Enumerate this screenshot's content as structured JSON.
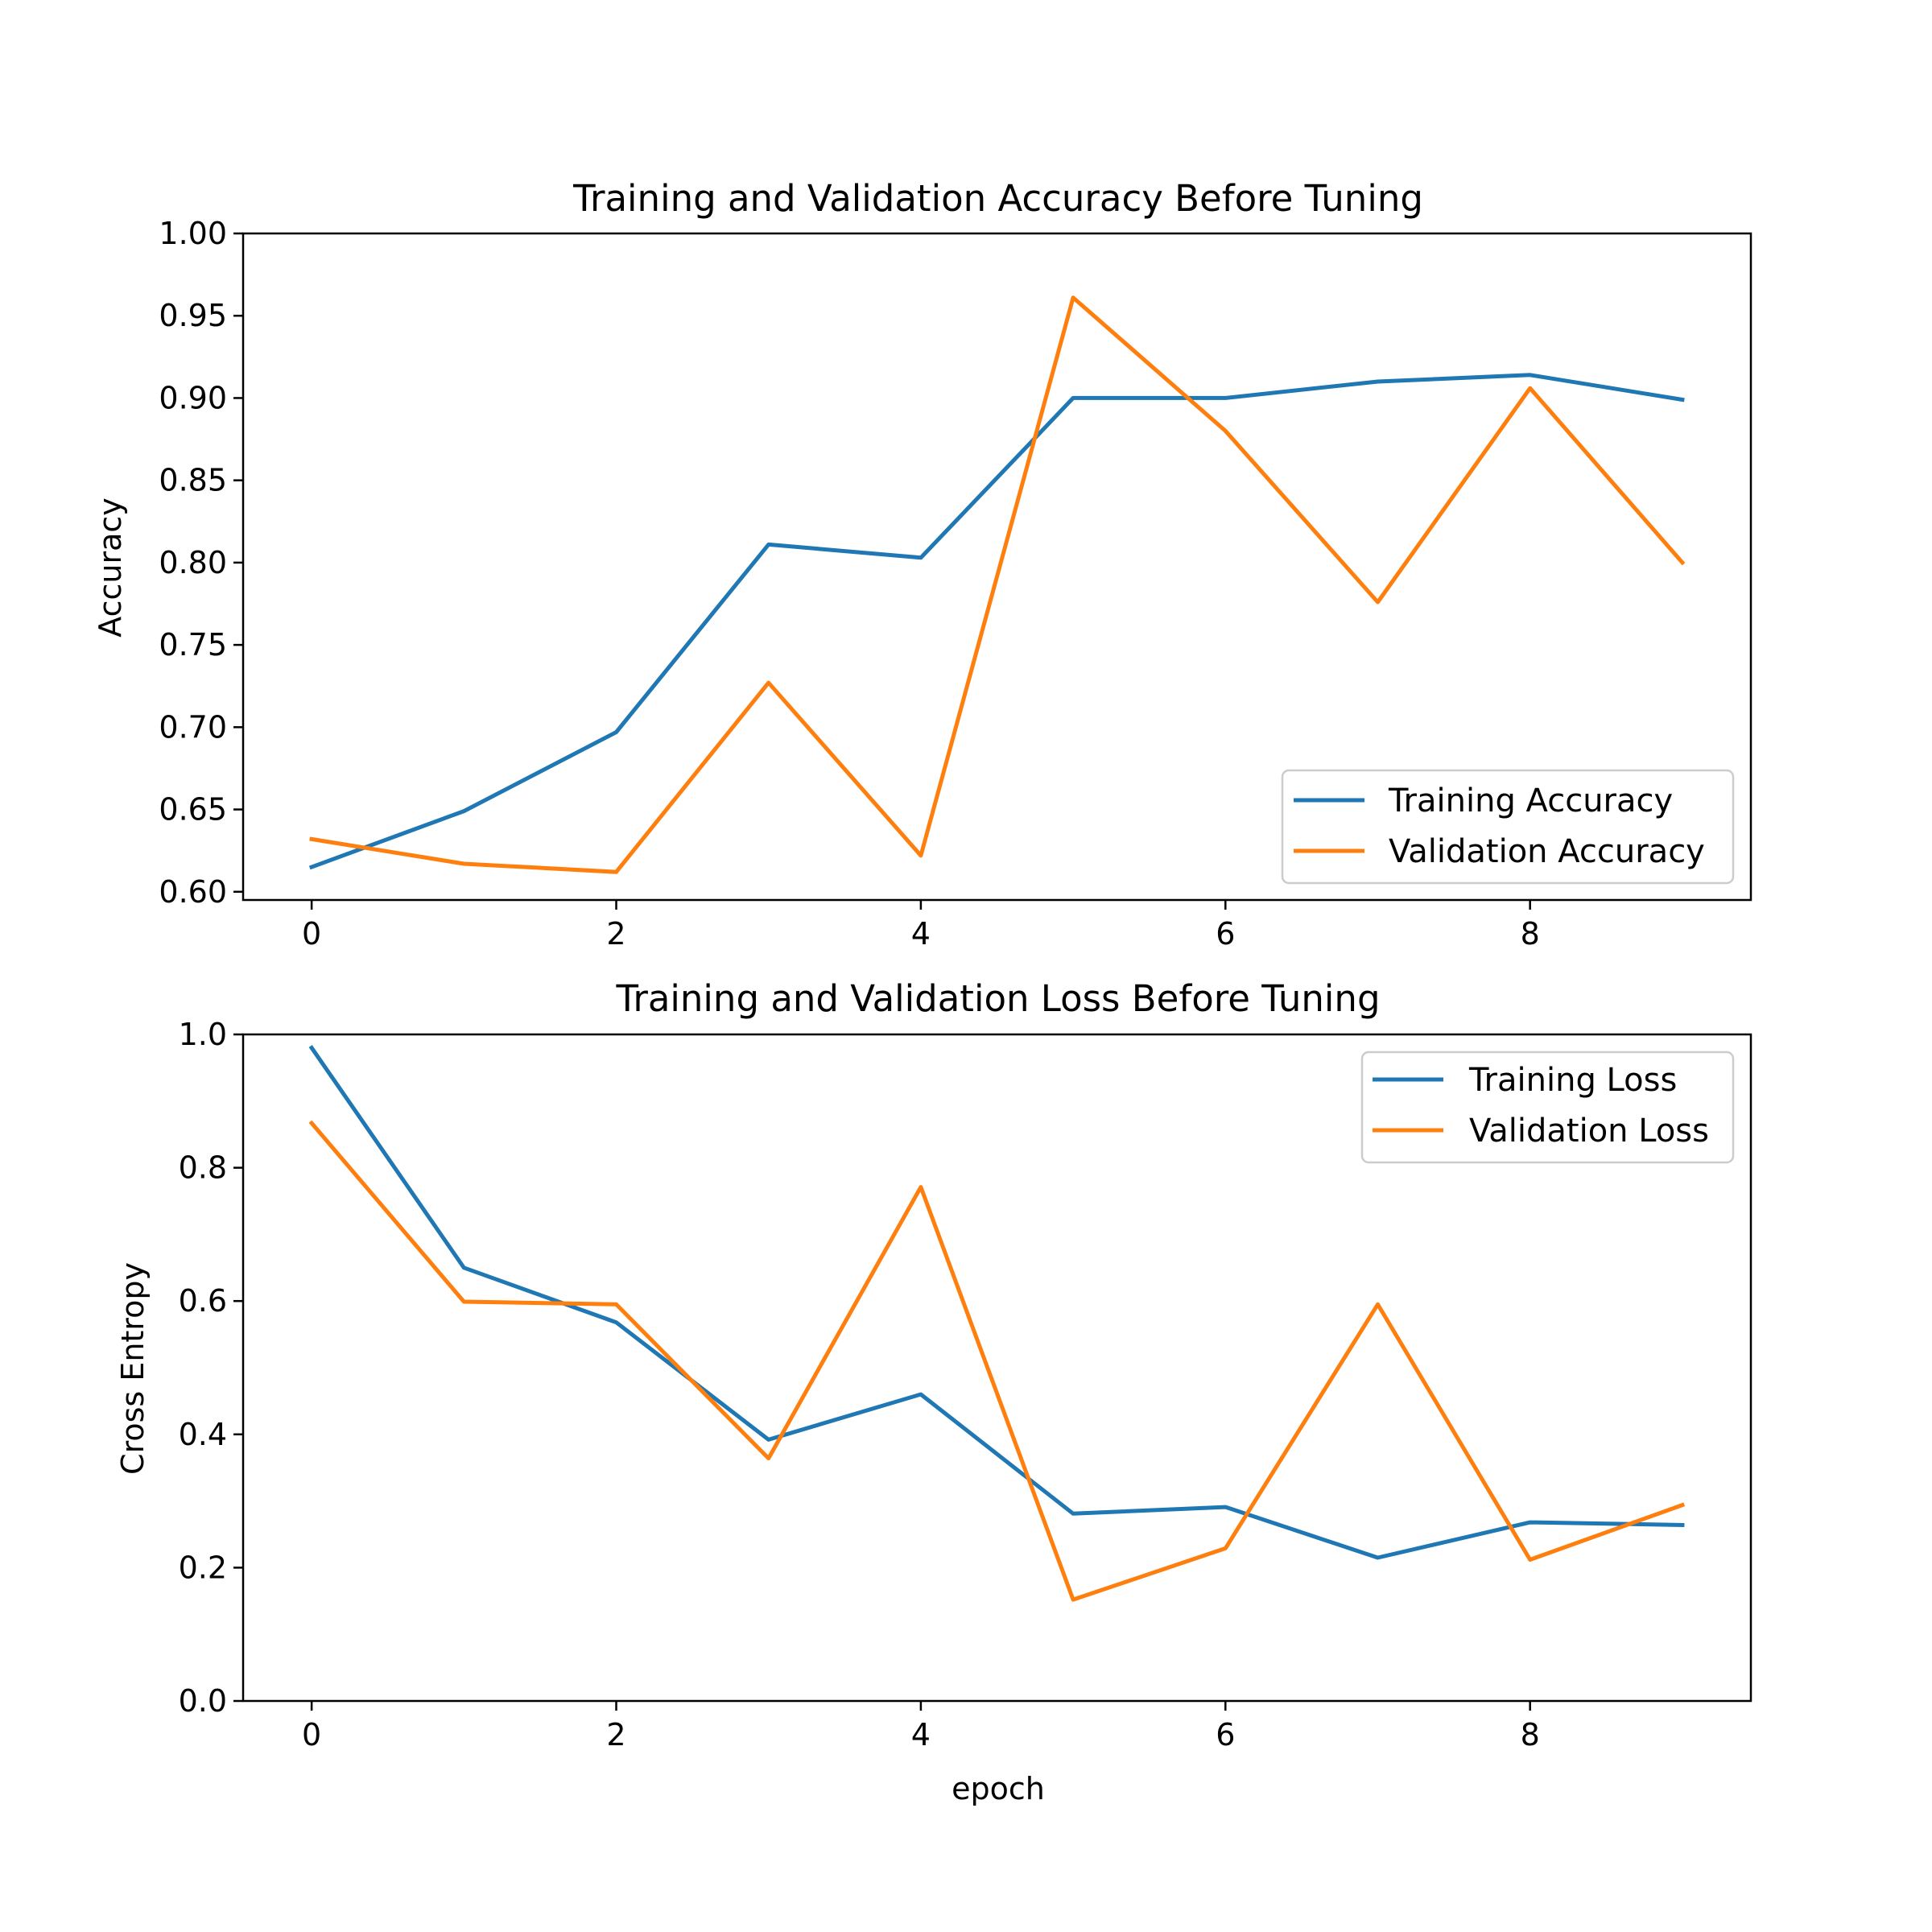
{
  "chart_data": [
    {
      "type": "line",
      "title": "Training and Validation Accuracy Before Tuning",
      "xlabel": "",
      "ylabel": "Accuracy",
      "xlim": [
        -0.45,
        9.45
      ],
      "ylim": [
        0.595,
        1.0
      ],
      "xticks": [
        0,
        2,
        4,
        6,
        8
      ],
      "xtick_labels": [
        "0",
        "2",
        "4",
        "6",
        "8"
      ],
      "yticks": [
        0.6,
        0.65,
        0.7,
        0.75,
        0.8,
        0.85,
        0.9,
        0.95,
        1.0
      ],
      "ytick_labels": [
        "0.60",
        "0.65",
        "0.70",
        "0.75",
        "0.80",
        "0.85",
        "0.90",
        "0.95",
        "1.00"
      ],
      "grid": false,
      "legend_position": "lower right",
      "x": [
        0,
        1,
        2,
        3,
        4,
        5,
        6,
        7,
        8,
        9
      ],
      "series": [
        {
          "name": "Training Accuracy",
          "color": "#1f77b4",
          "values": [
            0.615,
            0.649,
            0.697,
            0.811,
            0.803,
            0.9,
            0.9,
            0.91,
            0.914,
            0.899
          ]
        },
        {
          "name": "Validation Accuracy",
          "color": "#ff7f0e",
          "values": [
            0.632,
            0.617,
            0.612,
            0.727,
            0.622,
            0.961,
            0.88,
            0.776,
            0.906,
            0.8
          ]
        }
      ]
    },
    {
      "type": "line",
      "title": "Training and Validation Loss Before Tuning",
      "xlabel": "epoch",
      "ylabel": "Cross Entropy",
      "xlim": [
        -0.45,
        9.45
      ],
      "ylim": [
        0.0,
        1.0
      ],
      "xticks": [
        0,
        2,
        4,
        6,
        8
      ],
      "xtick_labels": [
        "0",
        "2",
        "4",
        "6",
        "8"
      ],
      "yticks": [
        0.0,
        0.2,
        0.4,
        0.6,
        0.8,
        1.0
      ],
      "ytick_labels": [
        "0.0",
        "0.2",
        "0.4",
        "0.6",
        "0.8",
        "1.0"
      ],
      "grid": false,
      "legend_position": "upper right",
      "x": [
        0,
        1,
        2,
        3,
        4,
        5,
        6,
        7,
        8,
        9
      ],
      "series": [
        {
          "name": "Training Loss",
          "color": "#1f77b4",
          "values": [
            0.98,
            0.65,
            0.568,
            0.392,
            0.46,
            0.281,
            0.291,
            0.215,
            0.268,
            0.264
          ]
        },
        {
          "name": "Validation Loss",
          "color": "#ff7f0e",
          "values": [
            0.867,
            0.599,
            0.595,
            0.364,
            0.771,
            0.152,
            0.229,
            0.595,
            0.212,
            0.294
          ]
        }
      ]
    }
  ]
}
